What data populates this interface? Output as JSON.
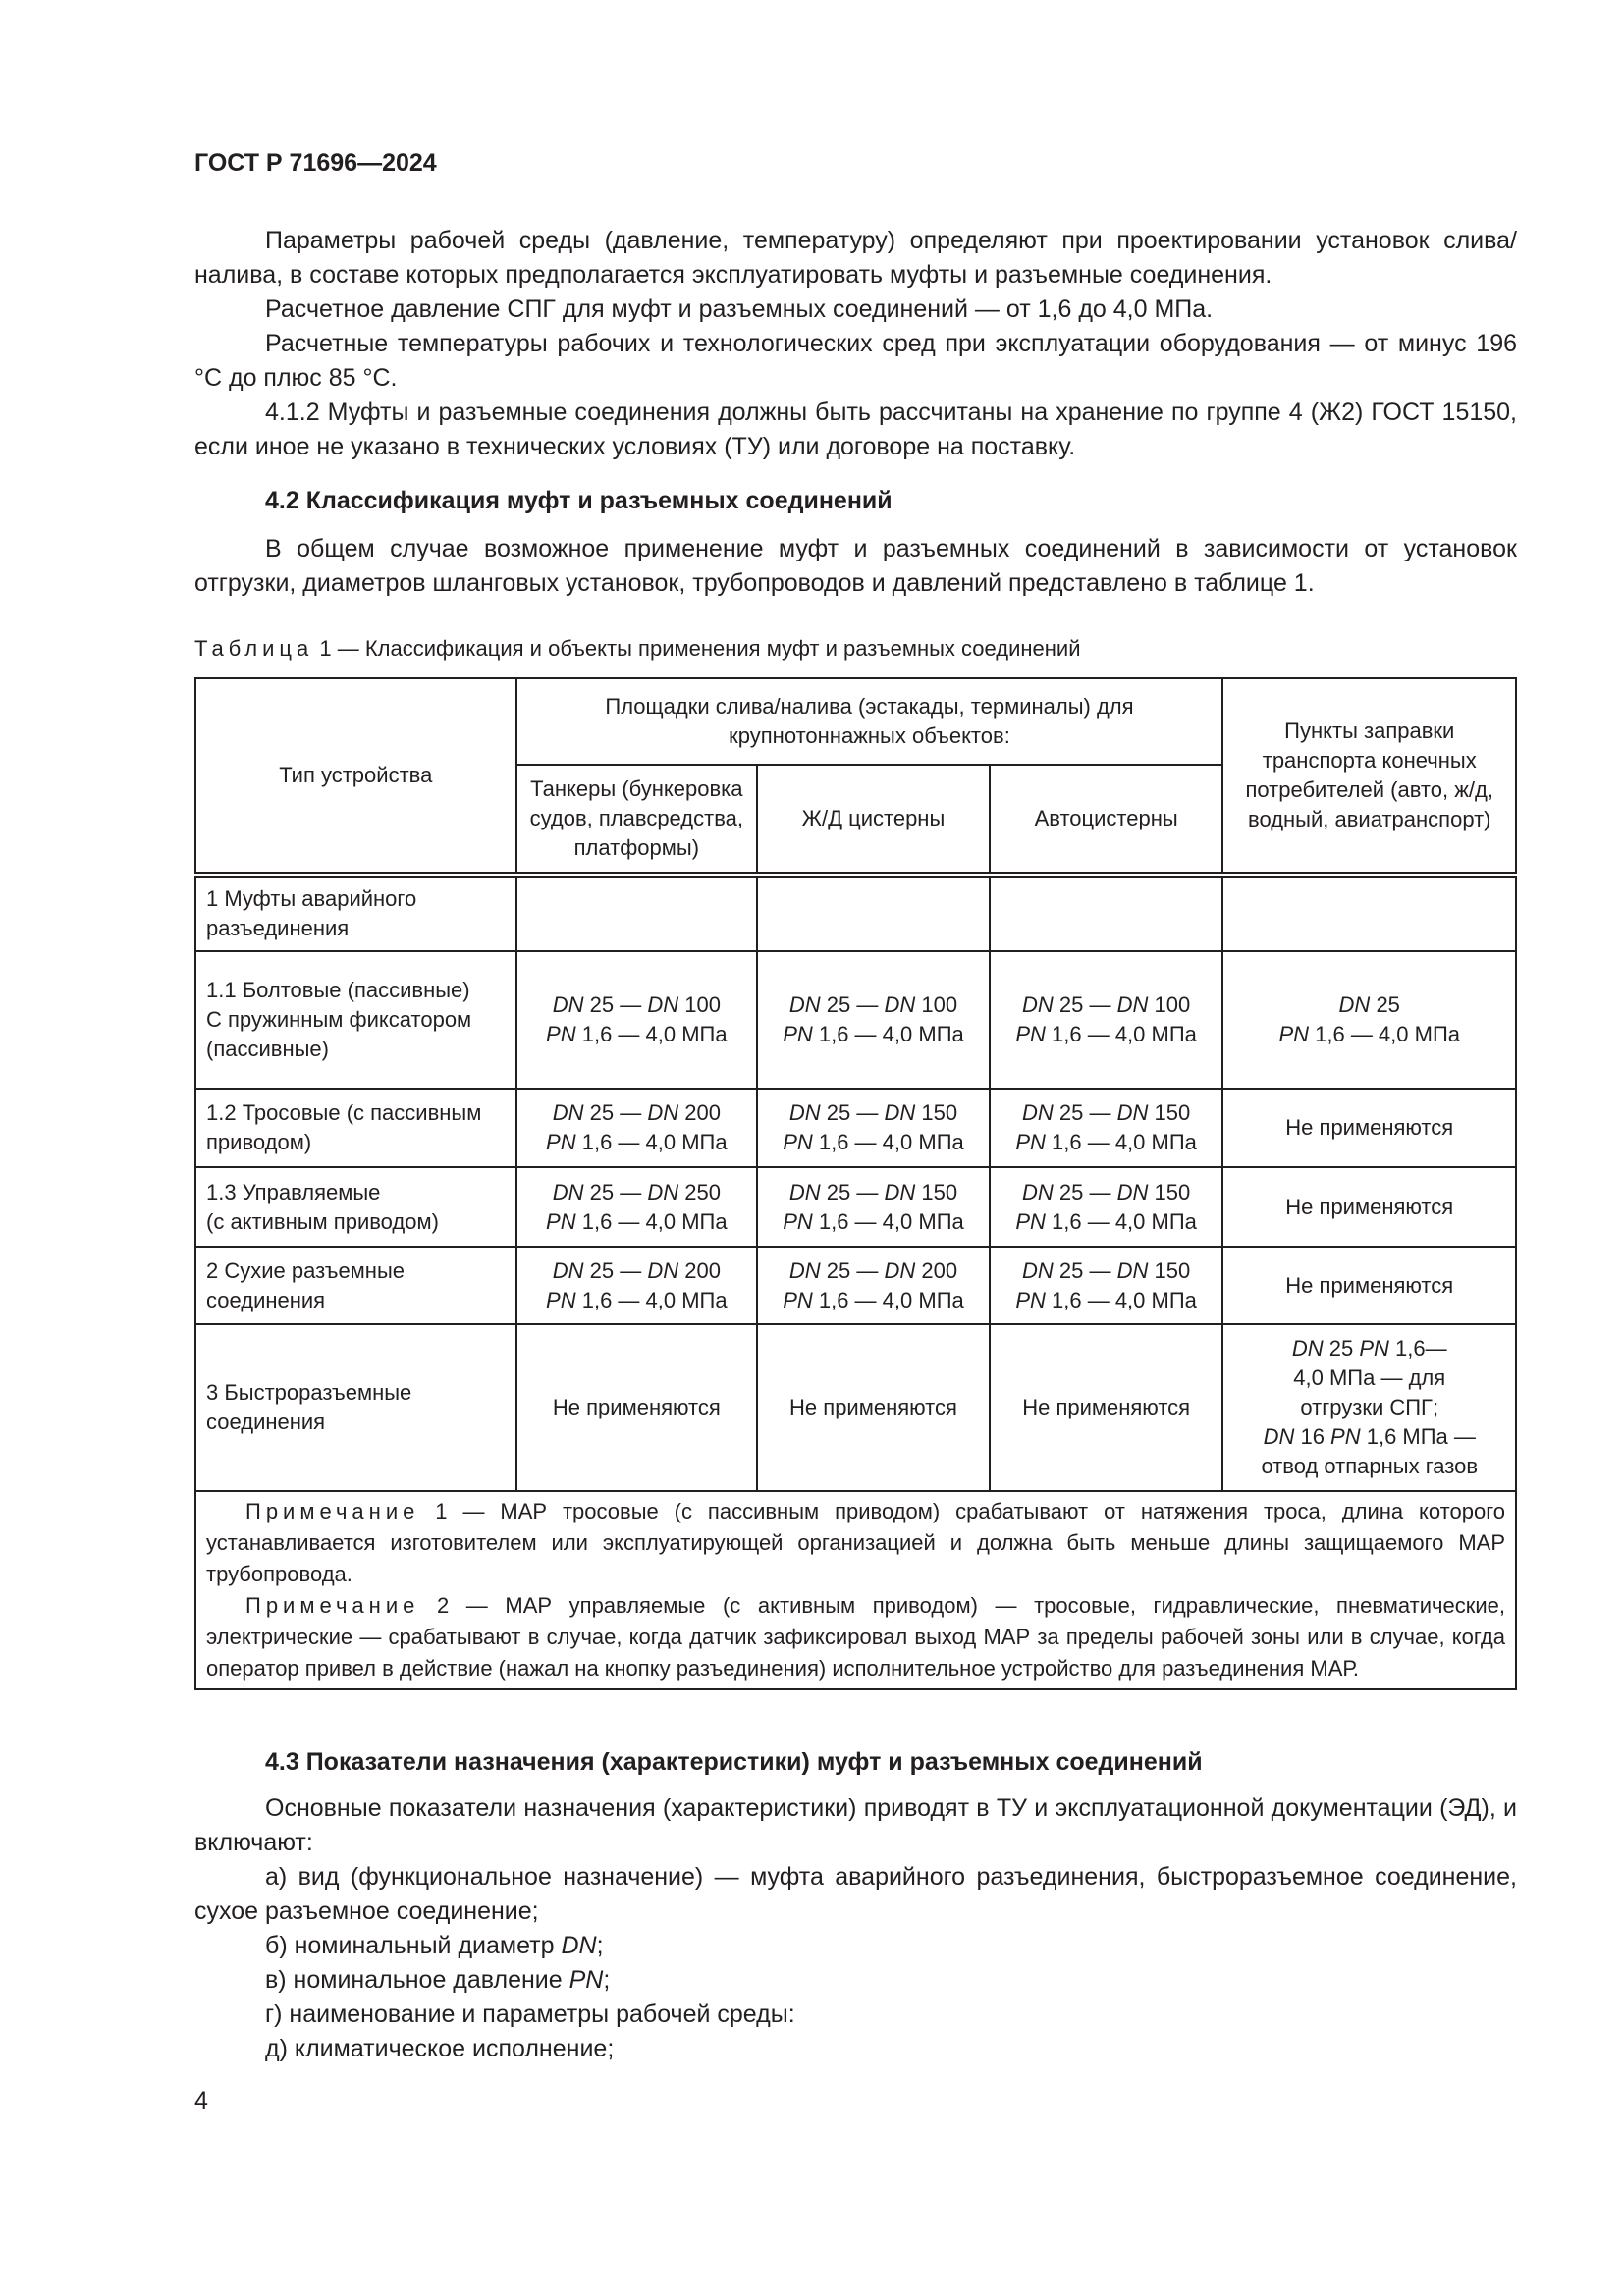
{
  "header": {
    "doc_id": "ГОСТ Р 71696—2024"
  },
  "paragraphs_top": [
    "Параметры рабочей среды (давление, температуру) определяют при проектировании установок слива/налива, в составе которых предполагается эксплуатировать муфты и разъемные соединения.",
    "Расчетное давление СПГ для муфт и разъемных соединений — от 1,6 до 4,0 МПа.",
    "Расчетные температуры рабочих и технологических сред при эксплуатации оборудования — от минус 196 °С до плюс 85 °С.",
    "4.1.2 Муфты и разъемные соединения должны быть рассчитаны на хранение по группе 4 (Ж2) ГОСТ 15150, если иное не указано в технических условиях (ТУ) или договоре на поставку."
  ],
  "section_42": {
    "heading": "4.2 Классификация муфт и разъемных соединений",
    "text": "В общем случае возможное применение муфт и разъемных соединений в зависимости от установок отгрузки, диаметров шланговых установок, трубопроводов и давлений представлено в таблице 1."
  },
  "table": {
    "caption_word": "Таблица",
    "caption_rest": "1 — Классификация и объекты применения муфт и разъемных соединений",
    "headers": {
      "type": "Тип устройства",
      "group": "Площадки слива/налива (эстакады, терминалы) для крупнотоннажных объектов:",
      "tankers": "Танкеры (бункеровка судов, плавсредства, платформы)",
      "rail": "Ж/Д цистерны",
      "auto": "Автоцистерны",
      "points": "Пункты заправки транспорта конечных потребителей (авто, ж/д, водный, авиатранспорт)"
    },
    "rows": [
      {
        "type": "1 Муфты аварийного разъединения",
        "cells": [
          "",
          "",
          "",
          ""
        ]
      },
      {
        "type": "1.1 Болтовые (пассивные)\nС пружинным фиксатором (пассивные)",
        "cells": [
          "DN 25 — DN 100\nPN 1,6 — 4,0 МПа",
          "DN 25 — DN 100\nPN 1,6 — 4,0 МПа",
          "DN 25 — DN 100\nPN 1,6 — 4,0 МПа",
          "DN 25\nPN 1,6 — 4,0 МПа"
        ]
      },
      {
        "type": "1.2 Тросовые (с пассивным приводом)",
        "cells": [
          "DN 25 — DN 200\nPN 1,6 — 4,0 МПа",
          "DN 25 — DN 150\nPN 1,6 — 4,0 МПа",
          "DN 25 — DN 150\nPN 1,6 — 4,0 МПа",
          "Не применяются"
        ]
      },
      {
        "type": "1.3 Управляемые\n(с активным приводом)",
        "cells": [
          "DN 25 — DN 250\nPN 1,6 — 4,0 МПа",
          "DN 25 — DN 150\nPN 1,6 — 4,0 МПа",
          "DN 25 — DN 150\nPN 1,6 — 4,0 МПа",
          "Не применяются"
        ]
      },
      {
        "type": "2 Сухие разъемные соединения",
        "cells": [
          "DN 25 — DN 200\nPN 1,6 — 4,0 МПа",
          "DN 25 — DN 200\nPN 1,6 — 4,0 МПа",
          "DN 25 — DN 150\nPN 1,6 — 4,0 МПа",
          "Не применяются"
        ]
      },
      {
        "type": "3 Быстроразъемные соединения",
        "cells": [
          "Не применяются",
          "Не применяются",
          "Не применяются",
          "DN 25 PN 1,6—\n4,0 МПа — для\nотгрузки СПГ;\nDN 16 PN 1,6 МПа —\nотвод отпарных газов"
        ]
      }
    ],
    "notes": [
      {
        "label": "Примечание",
        "text": "1 — МАР тросовые (с пассивным приводом) срабатывают от натяжения троса, длина которого устанавливается изготовителем или эксплуатирующей организацией и должна быть меньше длины защищаемого МАР трубопровода."
      },
      {
        "label": "Примечание",
        "text": "2 — МАР управляемые (с активным приводом) — тросовые, гидравлические, пневматические, электрические — срабатывают в случае, когда датчик зафиксировал выход МАР за пределы рабочей зоны или в случае, когда оператор привел в действие (нажал на кнопку разъединения) исполнительное устройство для разъединения МАР."
      }
    ]
  },
  "section_43": {
    "heading": "4.3 Показатели назначения (характеристики) муфт и разъемных соединений",
    "text": "Основные показатели назначения (характеристики) приводят в ТУ и эксплуатационной документации (ЭД), и включают:",
    "items": [
      "а) вид (функциональное назначение) — муфта аварийного разъединения, быстроразъемное соединение, сухое разъемное соединение;",
      "б) номинальный диаметр DN;",
      "в) номинальное давление PN;",
      "г) наименование и параметры рабочей среды:",
      "д) климатическое исполнение;"
    ]
  },
  "page_number": "4"
}
